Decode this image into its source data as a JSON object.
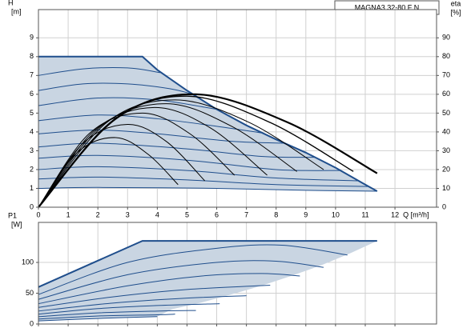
{
  "chart_data": [
    {
      "type": "line",
      "title": "MAGNA3 32-80 F N",
      "ylabel": [
        "H",
        "[m]"
      ],
      "y2label": [
        "eta",
        "[%]"
      ],
      "xlabel": "Q [m³/h]",
      "xlim": [
        0,
        13.4
      ],
      "xticks": [
        0,
        1,
        2,
        3,
        4,
        5,
        6,
        7,
        8,
        9,
        10,
        11,
        12
      ],
      "ylim": [
        0,
        10.5
      ],
      "yticks": [
        0,
        1,
        2,
        3,
        4,
        5,
        6,
        7,
        8,
        9
      ],
      "y2lim": [
        0,
        105
      ],
      "y2ticks": [
        0,
        10,
        20,
        30,
        40,
        50,
        60,
        70,
        80,
        90
      ],
      "grid": true,
      "fill_color": "#c9d5e2",
      "show_xtick_labels": true,
      "series": [
        {
          "color": "#1f4e8c",
          "width": 2,
          "smooth": false,
          "boundary": "forward",
          "x": [
            0,
            3.5,
            4,
            5,
            6,
            7,
            8,
            9,
            10,
            11,
            11.4
          ],
          "values": [
            8,
            8,
            7.3,
            6.2,
            5.2,
            4.35,
            3.6,
            2.9,
            2.1,
            1.2,
            0.85
          ]
        },
        {
          "color": "#1f4e8c",
          "width": 1,
          "x": [
            0,
            1.5,
            3,
            4.1
          ],
          "values": [
            7.0,
            7.35,
            7.4,
            7.15
          ]
        },
        {
          "color": "#1f4e8c",
          "width": 1,
          "x": [
            0,
            1.5,
            3,
            4.4,
            5.2
          ],
          "values": [
            6.2,
            6.55,
            6.55,
            6.3,
            6.0
          ]
        },
        {
          "color": "#1f4e8c",
          "width": 1,
          "x": [
            0,
            2,
            4,
            6
          ],
          "values": [
            5.4,
            5.8,
            5.7,
            5.2
          ]
        },
        {
          "color": "#1f4e8c",
          "width": 1,
          "x": [
            0,
            2,
            4,
            6,
            7.5
          ],
          "values": [
            4.6,
            4.9,
            4.7,
            4.3,
            3.95
          ]
        },
        {
          "color": "#1f4e8c",
          "width": 1,
          "x": [
            0,
            2,
            4,
            6.5,
            8.3
          ],
          "values": [
            3.9,
            4.1,
            3.9,
            3.5,
            3.4
          ]
        },
        {
          "color": "#1f4e8c",
          "width": 1,
          "x": [
            0,
            2,
            5,
            7.5,
            9.3
          ],
          "values": [
            3.2,
            3.4,
            3.1,
            2.7,
            2.65
          ]
        },
        {
          "color": "#1f4e8c",
          "width": 1,
          "x": [
            0,
            2,
            5,
            8,
            10.2
          ],
          "values": [
            2.6,
            2.75,
            2.5,
            2.0,
            1.95
          ]
        },
        {
          "color": "#1f4e8c",
          "width": 1,
          "x": [
            0,
            2,
            5,
            8,
            10.8
          ],
          "values": [
            2.0,
            2.15,
            1.95,
            1.55,
            1.4
          ]
        },
        {
          "color": "#1f4e8c",
          "width": 1,
          "x": [
            0,
            2,
            5,
            8,
            11.1
          ],
          "values": [
            1.5,
            1.6,
            1.45,
            1.2,
            1.1
          ]
        },
        {
          "color": "#1f4e8c",
          "width": 1,
          "boundary": "reverse",
          "x": [
            0,
            2,
            6,
            9,
            11.4
          ],
          "values": [
            1.0,
            1.05,
            1.0,
            0.9,
            0.85
          ]
        },
        {
          "color": "#000000",
          "width": 1,
          "axis": "y2",
          "x": [
            0,
            1.3,
            2.6,
            3.7,
            4.7
          ],
          "values": [
            0,
            29,
            37,
            28,
            12
          ]
        },
        {
          "color": "#000000",
          "width": 1,
          "axis": "y2",
          "x": [
            0,
            1.5,
            3.0,
            4.3,
            5.6
          ],
          "values": [
            0,
            34,
            44,
            35,
            14
          ]
        },
        {
          "color": "#000000",
          "width": 1,
          "axis": "y2",
          "x": [
            0,
            1.7,
            3.5,
            5.1,
            6.6
          ],
          "values": [
            0,
            39,
            50,
            39,
            17
          ]
        },
        {
          "color": "#000000",
          "width": 1,
          "axis": "y2",
          "x": [
            0,
            1.9,
            3.9,
            5.8,
            7.7
          ],
          "values": [
            0,
            41,
            53,
            42,
            17
          ]
        },
        {
          "color": "#000000",
          "width": 1,
          "axis": "y2",
          "x": [
            0,
            2.1,
            4.3,
            6.5,
            8.7
          ],
          "values": [
            0,
            43,
            55,
            43,
            19
          ]
        },
        {
          "color": "#000000",
          "width": 1,
          "axis": "y2",
          "x": [
            0,
            2.3,
            4.6,
            7.1,
            9.6
          ],
          "values": [
            0,
            45,
            57,
            45,
            20
          ]
        },
        {
          "color": "#000000",
          "width": 1.3,
          "axis": "y2",
          "x": [
            0,
            2.5,
            5.0,
            7.8,
            10.6
          ],
          "values": [
            0,
            46,
            59,
            45,
            19
          ]
        },
        {
          "color": "#000000",
          "width": 2.2,
          "axis": "y2",
          "x": [
            0,
            2.6,
            5.3,
            8.4,
            11.4
          ],
          "values": [
            0,
            47,
            60,
            45,
            18
          ]
        }
      ]
    },
    {
      "type": "line",
      "ylabel": [
        "P1",
        "[W]"
      ],
      "xlim": [
        0,
        13.4
      ],
      "xticks": [
        0,
        1,
        2,
        3,
        4,
        5,
        6,
        7,
        8,
        9,
        10,
        11,
        12
      ],
      "ylim": [
        0,
        165
      ],
      "yticks": [
        0,
        50,
        100
      ],
      "grid": true,
      "fill_color": "#c9d5e2",
      "show_xtick_labels": false,
      "series": [
        {
          "color": "#1f4e8c",
          "width": 2,
          "smooth": false,
          "boundary": "forward",
          "x": [
            0,
            3.5,
            11.4
          ],
          "values": [
            60,
            135,
            135
          ]
        },
        {
          "color": "#1f4e8c",
          "width": 0,
          "line": false,
          "boundary": "forward",
          "x": [
            11.4,
            10.5,
            9.5,
            8.5,
            7.5,
            6.5,
            5.5,
            4.5,
            4.0
          ],
          "values": [
            135,
            115,
            95,
            78,
            62,
            48,
            35,
            24,
            12
          ]
        },
        {
          "color": "#1f4e8c",
          "width": 1,
          "x": [
            0,
            3,
            6,
            8.2,
            10.4
          ],
          "values": [
            48,
            100,
            123,
            128,
            112
          ]
        },
        {
          "color": "#1f4e8c",
          "width": 1,
          "x": [
            0,
            3,
            6,
            8,
            9.6
          ],
          "values": [
            40,
            80,
            100,
            102,
            92
          ]
        },
        {
          "color": "#1f4e8c",
          "width": 1,
          "x": [
            0,
            3,
            5.5,
            7.5,
            8.8
          ],
          "values": [
            33,
            62,
            78,
            82,
            78
          ]
        },
        {
          "color": "#1f4e8c",
          "width": 1,
          "x": [
            0,
            2.5,
            5,
            7.8
          ],
          "values": [
            27,
            44,
            56,
            63
          ]
        },
        {
          "color": "#1f4e8c",
          "width": 1,
          "x": [
            0,
            2.5,
            5,
            7
          ],
          "values": [
            21,
            34,
            42,
            46
          ]
        },
        {
          "color": "#1f4e8c",
          "width": 1,
          "x": [
            0,
            2,
            4,
            6.1
          ],
          "values": [
            16,
            25,
            30,
            33
          ]
        },
        {
          "color": "#1f4e8c",
          "width": 1,
          "x": [
            0,
            2,
            4,
            5.3
          ],
          "values": [
            12,
            18,
            21,
            22
          ]
        },
        {
          "color": "#1f4e8c",
          "width": 1,
          "x": [
            0,
            2,
            4,
            4.6
          ],
          "values": [
            8,
            13,
            15,
            16
          ]
        },
        {
          "color": "#1f4e8c",
          "width": 1,
          "boundary": "reverse",
          "x": [
            0,
            2,
            4
          ],
          "values": [
            5,
            9,
            12
          ]
        }
      ]
    }
  ]
}
